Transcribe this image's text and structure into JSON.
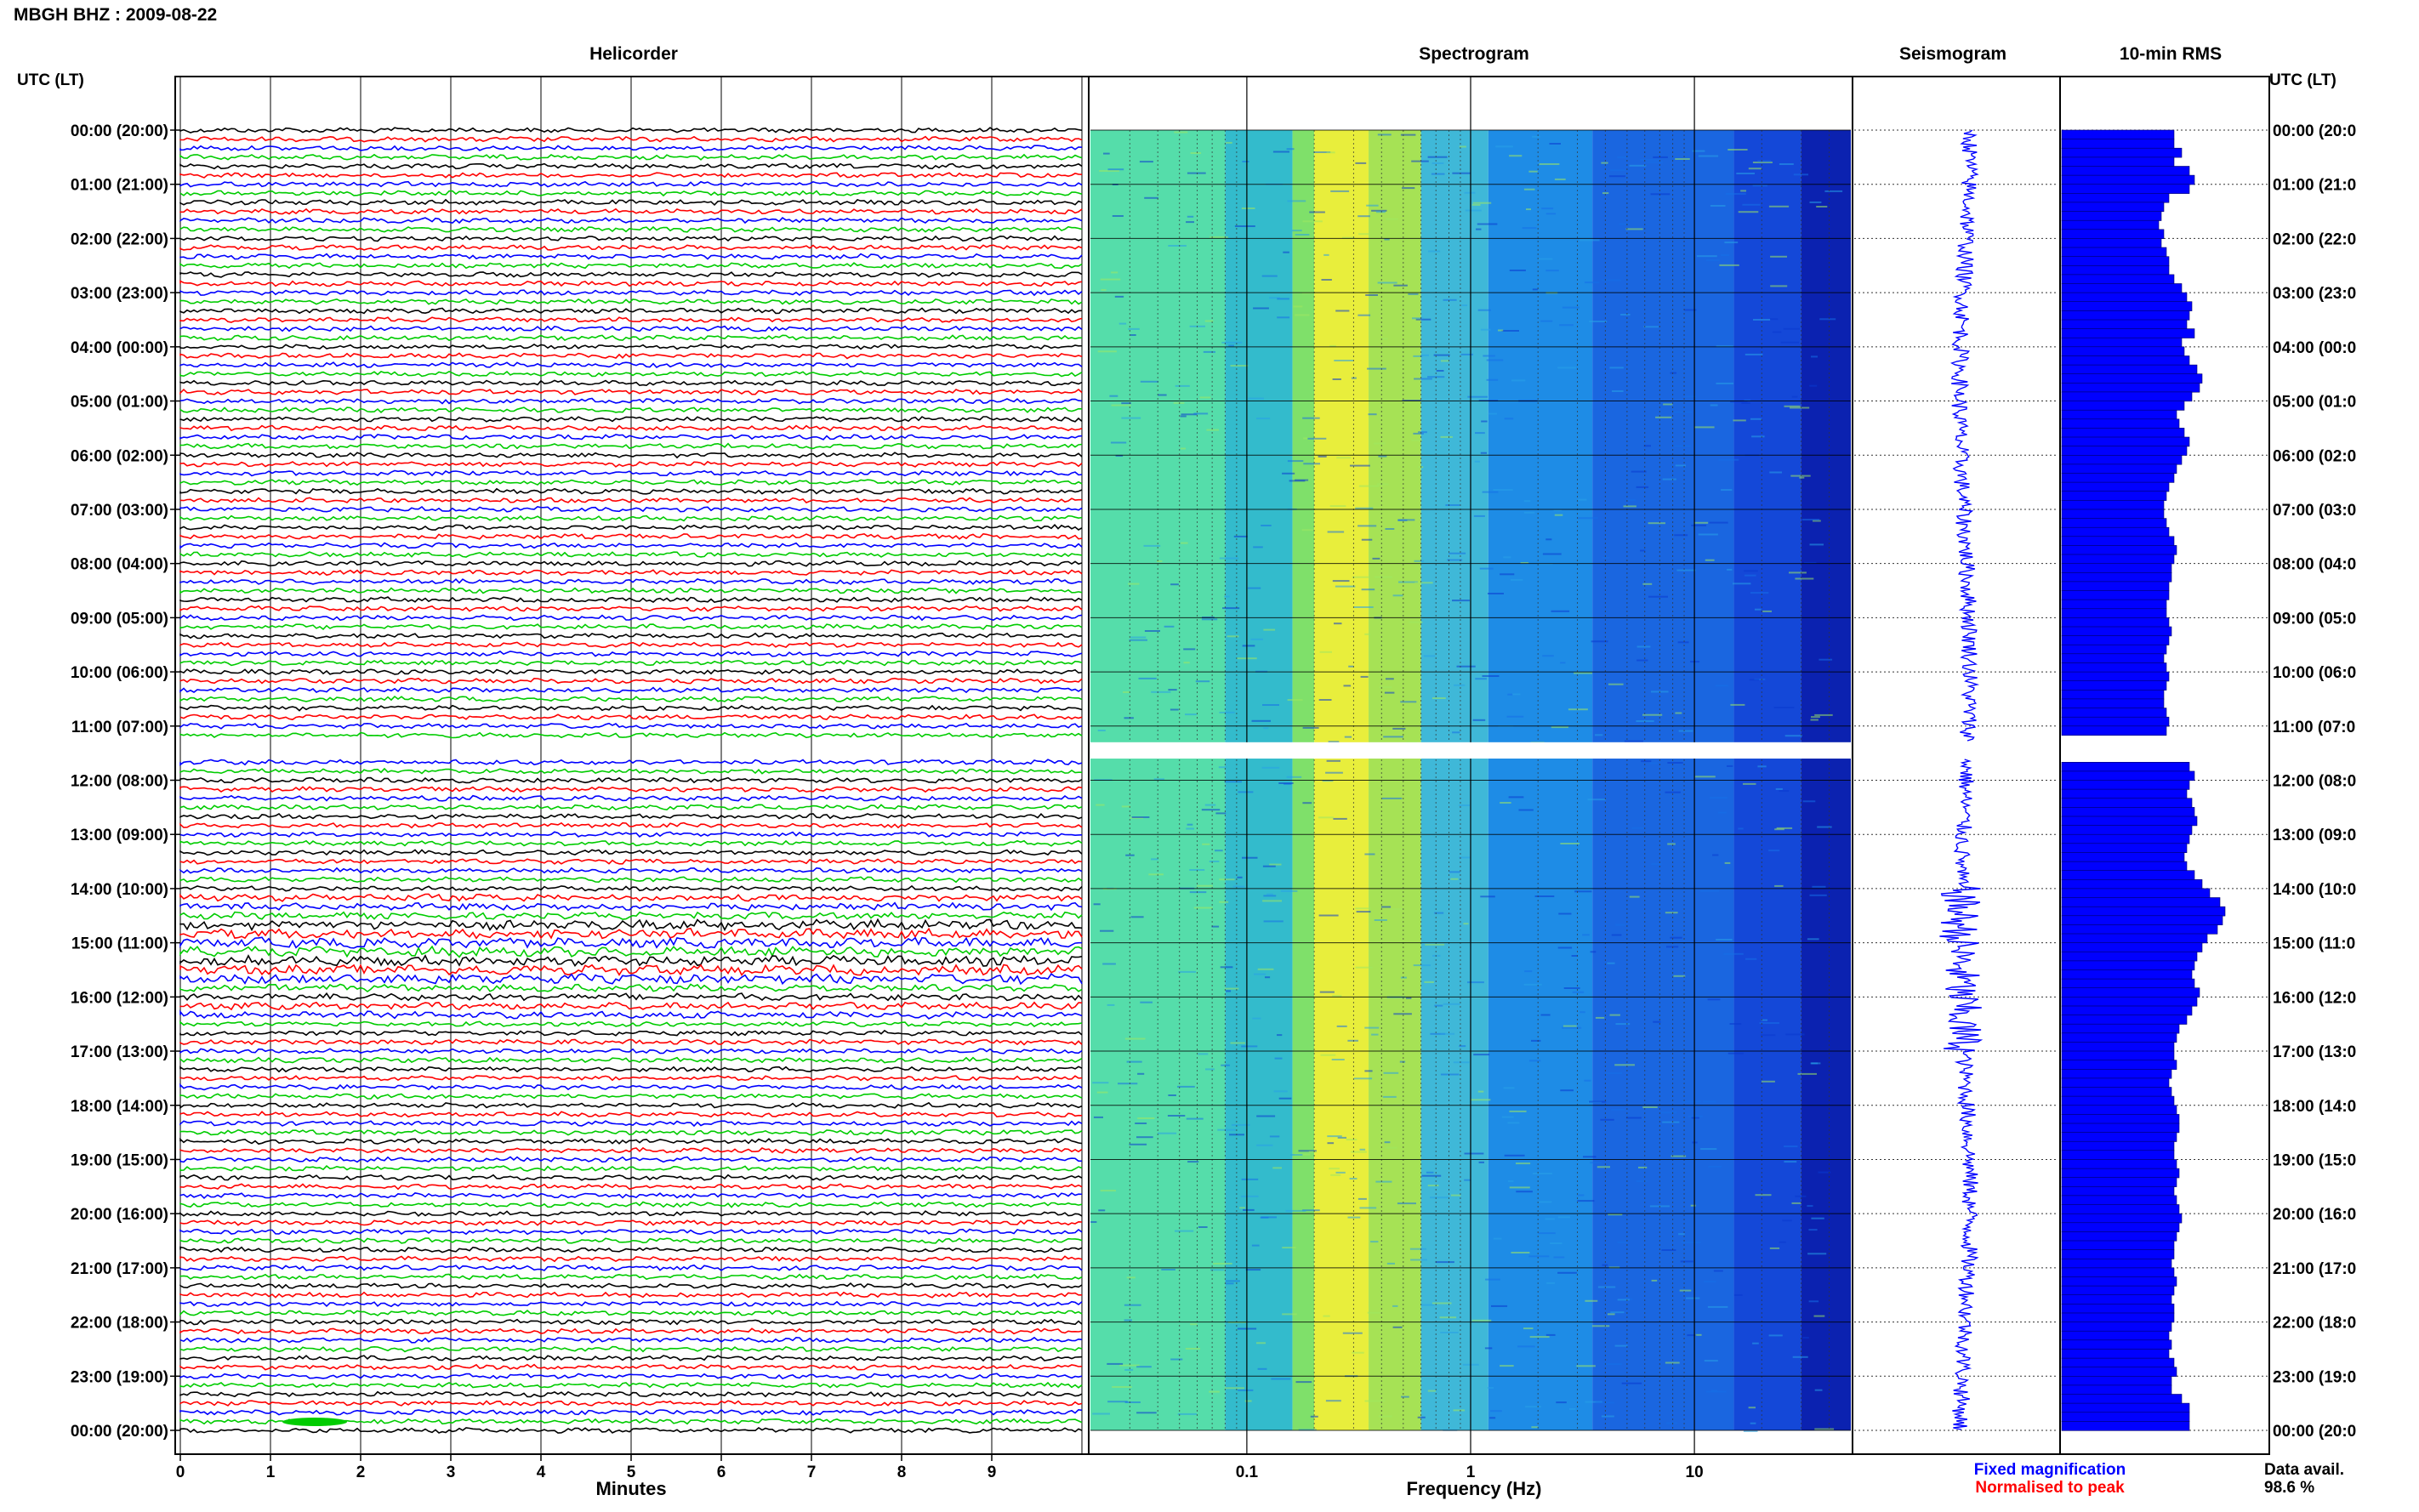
{
  "header": {
    "station_title": "MBGH BHZ : 2009-08-22"
  },
  "panels": {
    "helicorder": "Helicorder",
    "spectrogram": "Spectrogram",
    "seismogram": "Seismogram",
    "rms": "10-min RMS"
  },
  "axis_labels": {
    "time_left": "UTC (LT)",
    "time_right": "UTC (LT)",
    "minutes": "Minutes",
    "frequency": "Frequency (Hz)"
  },
  "legend": {
    "fixed": "Fixed magnification",
    "normalised": "Normalised to peak"
  },
  "data_availability": {
    "label": "Data avail.",
    "value": "98.6 %"
  },
  "colors": {
    "trace_cycle": [
      "#000000",
      "#ff0000",
      "#0000ff",
      "#00cc00"
    ],
    "seismogram": "#0000ff",
    "rms_bar": "#0000ff",
    "fixed_legend": "#0000ff",
    "normalised_legend": "#ff0000"
  },
  "chart_data": {
    "type": "heatmap",
    "time_ticks": [
      "00:00 (20:00)",
      "01:00 (21:00)",
      "02:00 (22:00)",
      "03:00 (23:00)",
      "04:00 (00:00)",
      "05:00 (01:00)",
      "06:00 (02:00)",
      "07:00 (03:00)",
      "08:00 (04:00)",
      "09:00 (05:00)",
      "10:00 (06:00)",
      "11:00 (07:00)",
      "12:00 (08:00)",
      "13:00 (09:00)",
      "14:00 (10:00)",
      "15:00 (11:00)",
      "16:00 (12:00)",
      "17:00 (13:00)",
      "18:00 (14:00)",
      "19:00 (15:00)",
      "20:00 (16:00)",
      "21:00 (17:00)",
      "22:00 (18:00)",
      "23:00 (19:00)",
      "00:00 (20:00)"
    ],
    "time_ticks_right": [
      "00:00 (20:0",
      "01:00 (21:0",
      "02:00 (22:0",
      "03:00 (23:0",
      "04:00 (00:0",
      "05:00 (01:0",
      "06:00 (02:0",
      "07:00 (03:0",
      "08:00 (04:0",
      "09:00 (05:0",
      "10:00 (06:0",
      "11:00 (07:0",
      "12:00 (08:0",
      "13:00 (09:0",
      "14:00 (10:0",
      "15:00 (11:0",
      "16:00 (12:0",
      "17:00 (13:0",
      "18:00 (14:0",
      "19:00 (15:0",
      "20:00 (16:0",
      "21:00 (17:0",
      "22:00 (18:0",
      "23:00 (19:0",
      "00:00 (20:0"
    ],
    "minutes_ticks": [
      0,
      1,
      2,
      3,
      4,
      5,
      6,
      7,
      8,
      9
    ],
    "minutes_range": [
      0,
      10
    ],
    "frequency_ticks": [
      0.1,
      1,
      10
    ],
    "frequency_ticks_labels": [
      "0.1",
      "1",
      "10"
    ],
    "frequency_range": [
      0.02,
      50
    ],
    "frequency_scale": "log",
    "time_range_hours": [
      0,
      24
    ],
    "data_gap_hours": [
      11.3,
      11.6
    ],
    "rms_10min": [
      2.2,
      2.2,
      2.35,
      2.2,
      2.5,
      2.6,
      2.5,
      2.1,
      2.0,
      1.95,
      1.9,
      2.0,
      1.95,
      2.05,
      2.1,
      2.1,
      2.2,
      2.35,
      2.45,
      2.55,
      2.5,
      2.45,
      2.6,
      2.35,
      2.4,
      2.5,
      2.65,
      2.75,
      2.7,
      2.55,
      2.4,
      2.25,
      2.3,
      2.4,
      2.5,
      2.45,
      2.35,
      2.25,
      2.2,
      2.1,
      2.05,
      2.0,
      2.0,
      2.05,
      2.1,
      2.2,
      2.25,
      2.2,
      2.15,
      2.15,
      2.1,
      2.1,
      2.05,
      2.05,
      2.1,
      2.15,
      2.1,
      2.05,
      2.0,
      2.05,
      2.1,
      2.05,
      2.0,
      2.0,
      2.05,
      2.1,
      2.05,
      2.0,
      2.05,
      2.4,
      2.5,
      2.6,
      2.5,
      2.45,
      2.55,
      2.6,
      2.65,
      2.55,
      2.5,
      2.45,
      2.4,
      2.45,
      2.6,
      2.75,
      2.9,
      3.1,
      3.2,
      3.15,
      3.05,
      2.85,
      2.75,
      2.65,
      2.6,
      2.55,
      2.6,
      2.7,
      2.65,
      2.55,
      2.45,
      2.3,
      2.25,
      2.2,
      2.2,
      2.25,
      2.15,
      2.1,
      2.15,
      2.2,
      2.25,
      2.3,
      2.3,
      2.25,
      2.2,
      2.2,
      2.25,
      2.3,
      2.25,
      2.2,
      2.25,
      2.3,
      2.35,
      2.3,
      2.25,
      2.2,
      2.2,
      2.15,
      2.2,
      2.25,
      2.2,
      2.15,
      2.2,
      2.2,
      2.15,
      2.1,
      2.15,
      2.1,
      2.2,
      2.25,
      2.15,
      2.15,
      2.35,
      2.5
    ],
    "rms_max": 4.0,
    "legend_placement": "bottom-right"
  }
}
